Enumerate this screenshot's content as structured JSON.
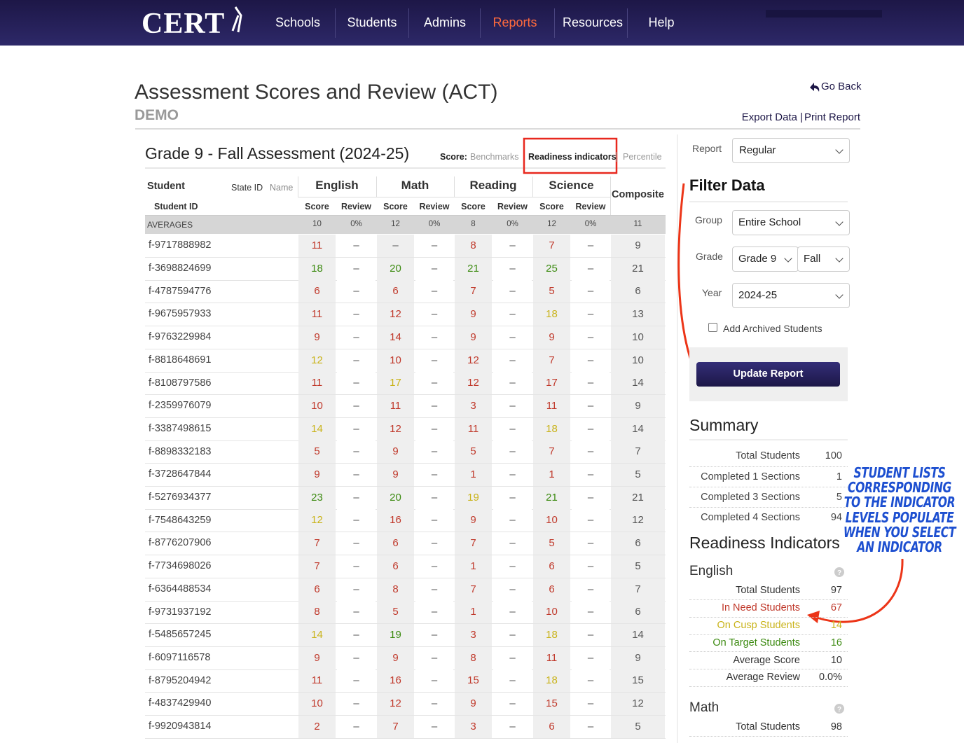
{
  "nav": {
    "logo": "CERT",
    "items": [
      "Schools",
      "Students",
      "Admins",
      "Reports",
      "Resources",
      "Help"
    ],
    "active": 3,
    "active_color": "#ff6a3d"
  },
  "header": {
    "title": "Assessment Scores and Review (ACT)",
    "subtitle": "DEMO",
    "go_back": "Go Back",
    "export": "Export Data",
    "separator": "|",
    "print": "Print Report"
  },
  "report": {
    "title": "Grade 9 - Fall Assessment (2024-25)",
    "score_label": "Score:",
    "score_options": [
      "Benchmarks",
      "Readiness indicators",
      "Percentile"
    ],
    "selected_option": 1,
    "columns": {
      "student": "Student",
      "state_id": "State ID",
      "name": "Name",
      "subjects": [
        "English",
        "Math",
        "Reading",
        "Science"
      ],
      "composite": "Composite",
      "student_id": "Student ID",
      "score": "Score",
      "review": "Review"
    },
    "averages": {
      "label": "AVERAGES",
      "cells": [
        "10",
        "0%",
        "12",
        "0%",
        "8",
        "0%",
        "12",
        "0%",
        "11"
      ]
    },
    "rows": [
      {
        "cells": [
          "f-9717888982",
          "11",
          "–",
          "–",
          "–",
          "8",
          "–",
          "7",
          "–",
          "9"
        ],
        "colors": [
          "#c0392b",
          "#555555",
          "#c0392b",
          "#c0392b"
        ]
      },
      {
        "cells": [
          "f-3698824699",
          "18",
          "–",
          "20",
          "–",
          "21",
          "–",
          "25",
          "–",
          "21"
        ],
        "colors": [
          "#3d8b12",
          "#3d8b12",
          "#3d8b12",
          "#3d8b12"
        ]
      },
      {
        "cells": [
          "f-4787594776",
          "6",
          "–",
          "6",
          "–",
          "7",
          "–",
          "5",
          "–",
          "6"
        ],
        "colors": [
          "#c0392b",
          "#c0392b",
          "#c0392b",
          "#c0392b"
        ]
      },
      {
        "cells": [
          "f-9675957933",
          "11",
          "–",
          "12",
          "–",
          "9",
          "–",
          "18",
          "–",
          "13"
        ],
        "colors": [
          "#c0392b",
          "#c0392b",
          "#c0392b",
          "#c9b31a"
        ]
      },
      {
        "cells": [
          "f-9763229984",
          "9",
          "–",
          "14",
          "–",
          "9",
          "–",
          "9",
          "–",
          "10"
        ],
        "colors": [
          "#c0392b",
          "#c0392b",
          "#c0392b",
          "#c0392b"
        ]
      },
      {
        "cells": [
          "f-8818648691",
          "12",
          "–",
          "10",
          "–",
          "12",
          "–",
          "7",
          "–",
          "10"
        ],
        "colors": [
          "#c9b31a",
          "#c0392b",
          "#c0392b",
          "#c0392b"
        ]
      },
      {
        "cells": [
          "f-8108797586",
          "11",
          "–",
          "17",
          "–",
          "12",
          "–",
          "17",
          "–",
          "14"
        ],
        "colors": [
          "#c0392b",
          "#c9b31a",
          "#c0392b",
          "#c0392b"
        ]
      },
      {
        "cells": [
          "f-2359976079",
          "10",
          "–",
          "11",
          "–",
          "3",
          "–",
          "11",
          "–",
          "9"
        ],
        "colors": [
          "#c0392b",
          "#c0392b",
          "#c0392b",
          "#c0392b"
        ]
      },
      {
        "cells": [
          "f-3387498615",
          "14",
          "–",
          "12",
          "–",
          "11",
          "–",
          "18",
          "–",
          "14"
        ],
        "colors": [
          "#c9b31a",
          "#c0392b",
          "#c0392b",
          "#c9b31a"
        ]
      },
      {
        "cells": [
          "f-8898332183",
          "5",
          "–",
          "9",
          "–",
          "5",
          "–",
          "7",
          "–",
          "7"
        ],
        "colors": [
          "#c0392b",
          "#c0392b",
          "#c0392b",
          "#c0392b"
        ]
      },
      {
        "cells": [
          "f-3728647844",
          "9",
          "–",
          "9",
          "–",
          "1",
          "–",
          "1",
          "–",
          "5"
        ],
        "colors": [
          "#c0392b",
          "#c0392b",
          "#c0392b",
          "#c0392b"
        ]
      },
      {
        "cells": [
          "f-5276934377",
          "23",
          "–",
          "20",
          "–",
          "19",
          "–",
          "21",
          "–",
          "21"
        ],
        "colors": [
          "#3d8b12",
          "#3d8b12",
          "#c9b31a",
          "#3d8b12"
        ]
      },
      {
        "cells": [
          "f-7548643259",
          "12",
          "–",
          "16",
          "–",
          "9",
          "–",
          "10",
          "–",
          "12"
        ],
        "colors": [
          "#c9b31a",
          "#c0392b",
          "#c0392b",
          "#c0392b"
        ]
      },
      {
        "cells": [
          "f-8776207906",
          "7",
          "–",
          "6",
          "–",
          "7",
          "–",
          "5",
          "–",
          "6"
        ],
        "colors": [
          "#c0392b",
          "#c0392b",
          "#c0392b",
          "#c0392b"
        ]
      },
      {
        "cells": [
          "f-7734698026",
          "7",
          "–",
          "6",
          "–",
          "1",
          "–",
          "6",
          "–",
          "5"
        ],
        "colors": [
          "#c0392b",
          "#c0392b",
          "#c0392b",
          "#c0392b"
        ]
      },
      {
        "cells": [
          "f-6364488534",
          "6",
          "–",
          "8",
          "–",
          "7",
          "–",
          "6",
          "–",
          "7"
        ],
        "colors": [
          "#c0392b",
          "#c0392b",
          "#c0392b",
          "#c0392b"
        ]
      },
      {
        "cells": [
          "f-9731937192",
          "8",
          "–",
          "5",
          "–",
          "1",
          "–",
          "10",
          "–",
          "6"
        ],
        "colors": [
          "#c0392b",
          "#c0392b",
          "#c0392b",
          "#c0392b"
        ]
      },
      {
        "cells": [
          "f-5485657245",
          "14",
          "–",
          "19",
          "–",
          "3",
          "–",
          "18",
          "–",
          "14"
        ],
        "colors": [
          "#c9b31a",
          "#3d8b12",
          "#c0392b",
          "#c9b31a"
        ]
      },
      {
        "cells": [
          "f-6097116578",
          "9",
          "–",
          "9",
          "–",
          "8",
          "–",
          "11",
          "–",
          "9"
        ],
        "colors": [
          "#c0392b",
          "#c0392b",
          "#c0392b",
          "#c0392b"
        ]
      },
      {
        "cells": [
          "f-8795204942",
          "11",
          "–",
          "16",
          "–",
          "15",
          "–",
          "18",
          "–",
          "15"
        ],
        "colors": [
          "#c0392b",
          "#c0392b",
          "#c0392b",
          "#c9b31a"
        ]
      },
      {
        "cells": [
          "f-4837429940",
          "10",
          "–",
          "12",
          "–",
          "9",
          "–",
          "15",
          "–",
          "12"
        ],
        "colors": [
          "#c0392b",
          "#c0392b",
          "#c0392b",
          "#c0392b"
        ]
      },
      {
        "cells": [
          "f-9920943814",
          "2",
          "–",
          "7",
          "–",
          "3",
          "–",
          "6",
          "–",
          "5"
        ],
        "colors": [
          "#c0392b",
          "#c0392b",
          "#c0392b",
          "#c0392b"
        ]
      }
    ]
  },
  "filters": {
    "report_label": "Report",
    "report_value": "Regular",
    "heading": "Filter Data",
    "group_label": "Group",
    "group_value": "Entire School",
    "grade_label": "Grade",
    "grade_value": "Grade 9",
    "term_value": "Fall",
    "year_label": "Year",
    "year_value": "2024-25",
    "archived": "Add Archived Students",
    "update": "Update Report"
  },
  "summary": {
    "heading": "Summary",
    "rows": [
      {
        "label": "Total Students",
        "value": "100"
      },
      {
        "label": "Completed 1 Sections",
        "value": "1"
      },
      {
        "label": "Completed 3 Sections",
        "value": "5"
      },
      {
        "label": "Completed 4 Sections",
        "value": "94"
      }
    ]
  },
  "readiness": {
    "heading": "Readiness Indicators",
    "subjects": [
      {
        "name": "English",
        "rows": [
          {
            "label": "Total Students",
            "value": "97",
            "color": "#333333"
          },
          {
            "label": "In Need Students",
            "value": "67",
            "color": "#c0392b"
          },
          {
            "label": "On Cusp Students",
            "value": "14",
            "color": "#c9b31a"
          },
          {
            "label": "On Target Students",
            "value": "16",
            "color": "#3d8b12"
          },
          {
            "label": "Average Score",
            "value": "10",
            "color": "#333333"
          },
          {
            "label": "Average Review",
            "value": "0.0%",
            "color": "#333333"
          }
        ]
      },
      {
        "name": "Math",
        "rows": [
          {
            "label": "Total Students",
            "value": "98",
            "color": "#333333"
          }
        ]
      }
    ]
  },
  "annotation": [
    "STUDENT LISTS",
    "CORRESPONDING",
    "TO THE INDICATOR",
    "LEVELS POPULATE",
    "WHEN YOU SELECT",
    "AN INDICATOR"
  ]
}
